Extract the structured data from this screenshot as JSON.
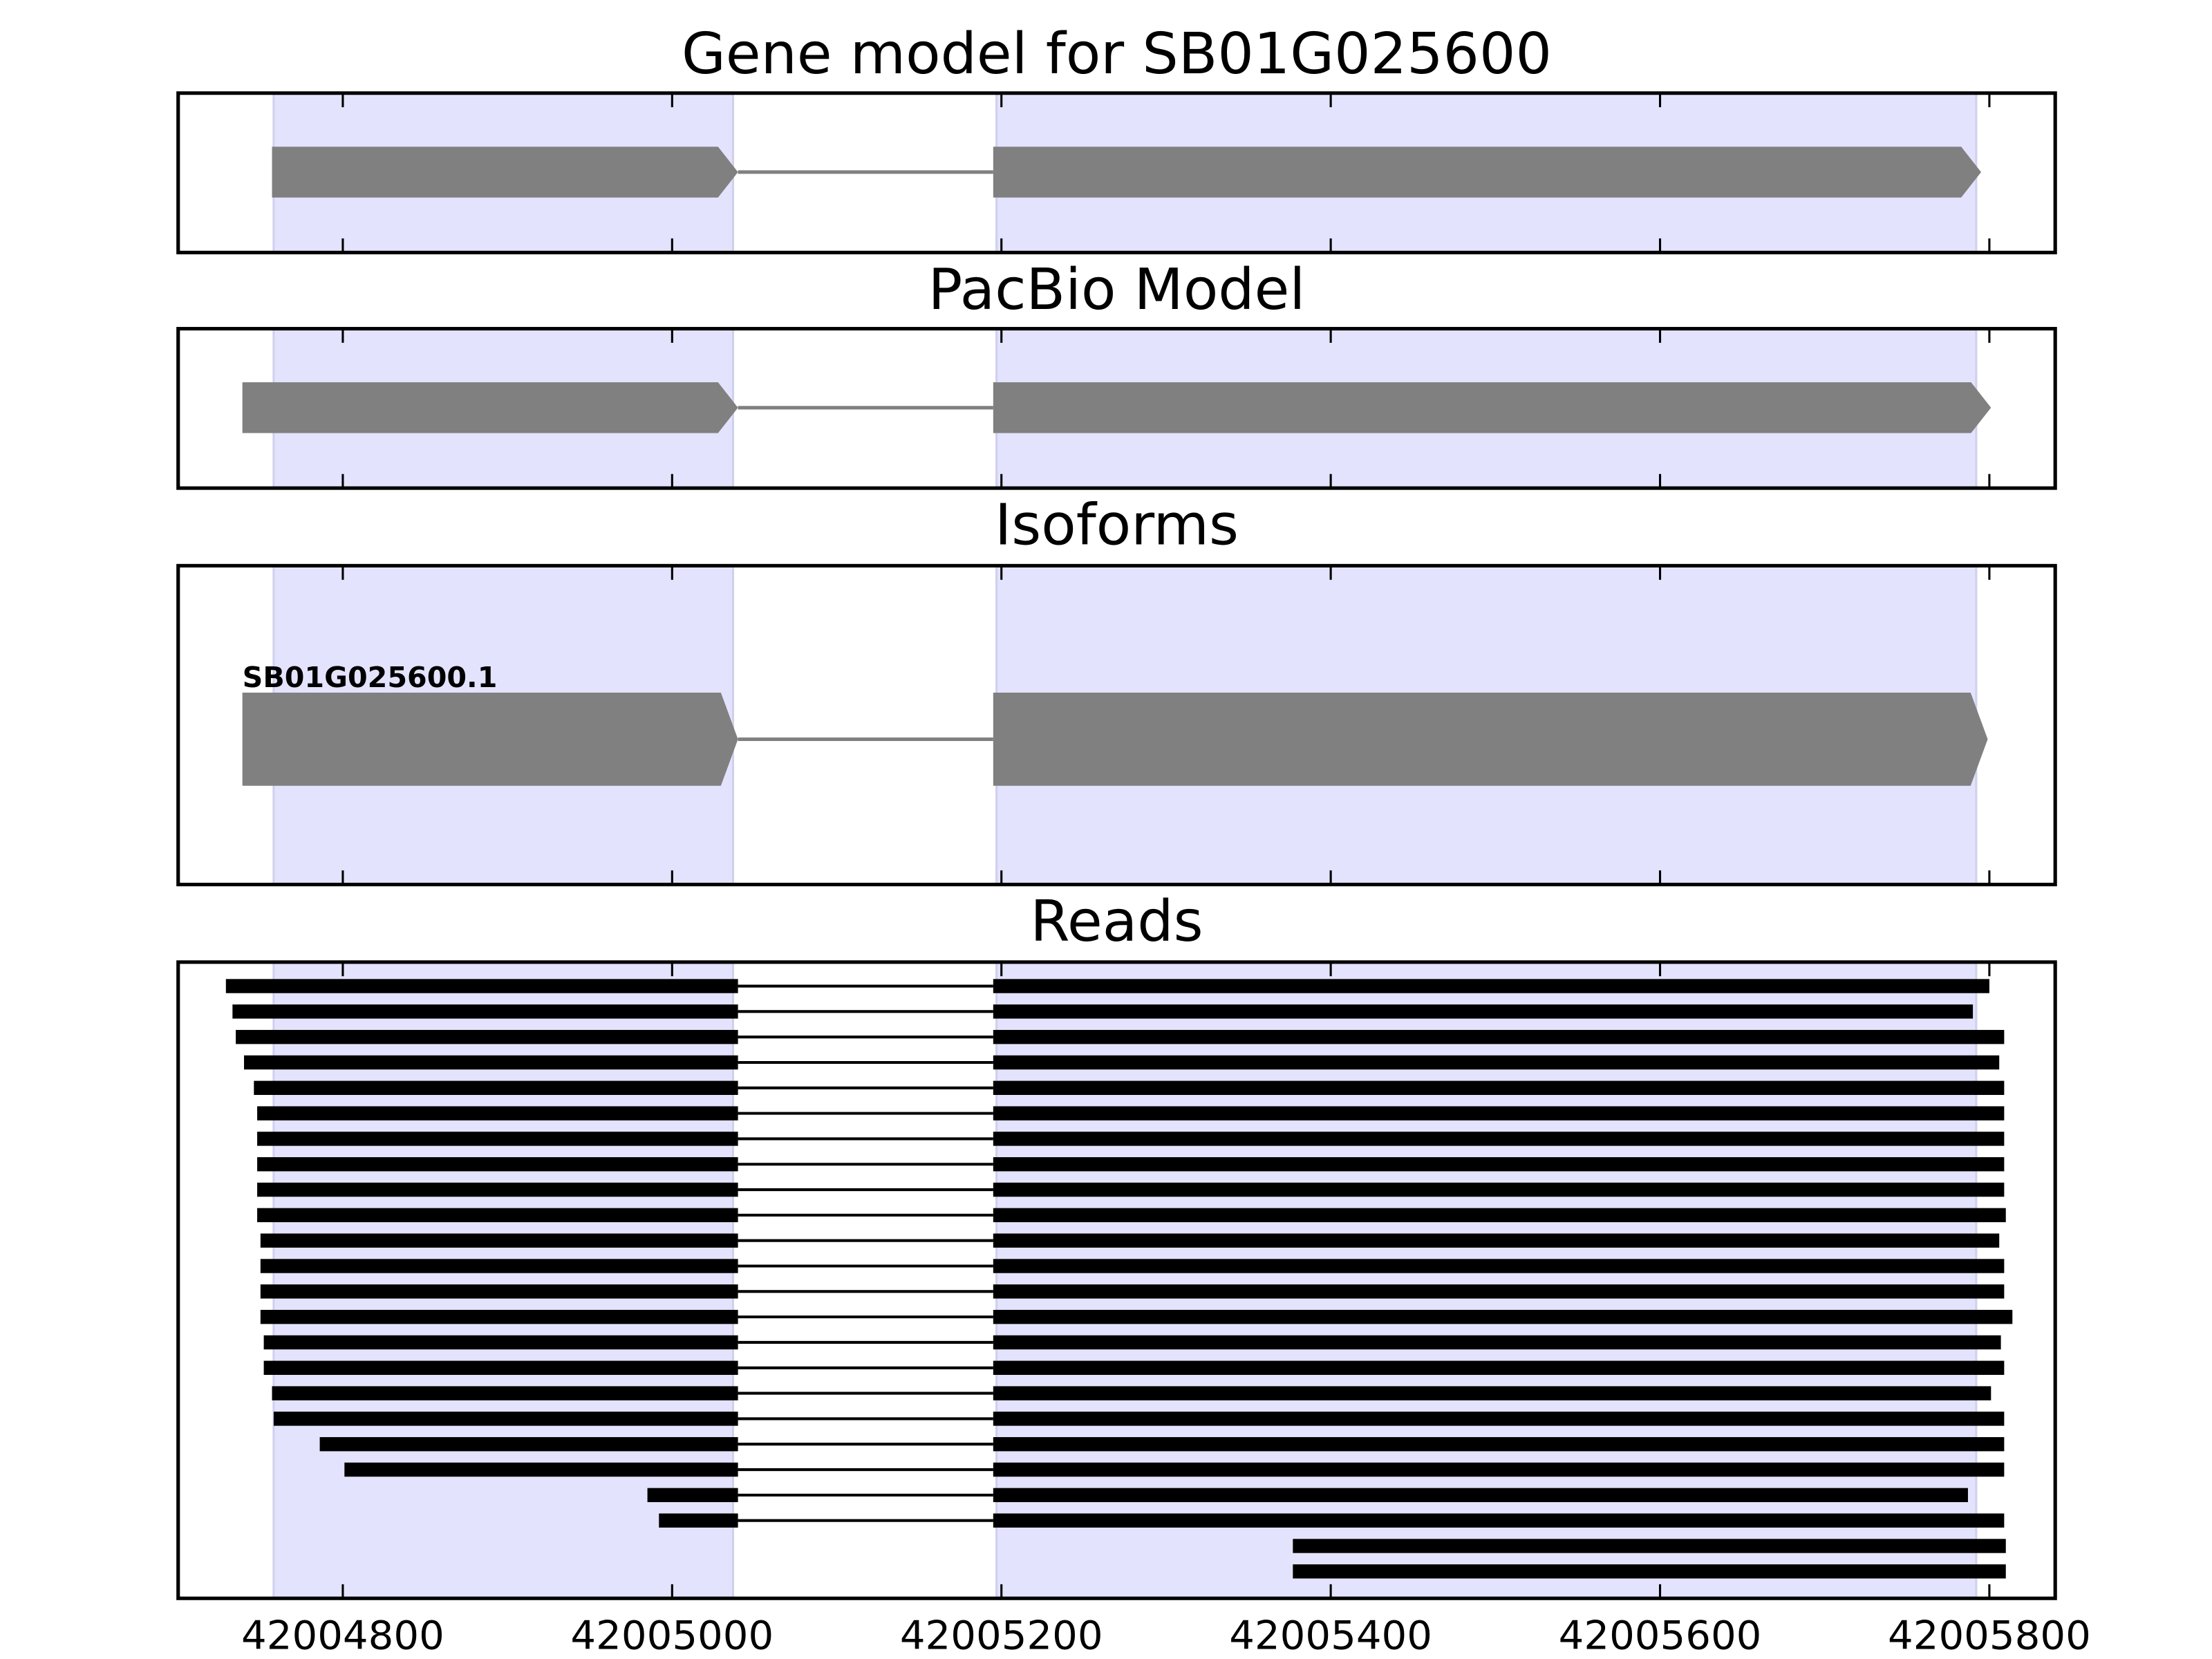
{
  "xlim": [
    42004700,
    42005840
  ],
  "xticks": [
    42004800,
    42005000,
    42005200,
    42005400,
    42005600,
    42005800
  ],
  "highlight": [
    [
      42004758,
      42005037
    ],
    [
      42005197,
      42005792
    ]
  ],
  "gene_model": {
    "title": "Gene model for SB01G025600",
    "exons": [
      [
        42004757,
        42005040
      ],
      [
        42005195,
        42005795
      ]
    ]
  },
  "pacbio": {
    "title": "PacBio Model",
    "exons": [
      [
        42004739,
        42005040
      ],
      [
        42005195,
        42005801
      ]
    ]
  },
  "isoforms": {
    "title": "Isoforms",
    "items": [
      {
        "name": "SB01G025600.1",
        "exons": [
          [
            42004739,
            42005040
          ],
          [
            42005195,
            42005799
          ]
        ]
      }
    ]
  },
  "reads": {
    "title": "Reads",
    "items": [
      [
        [
          42004729,
          42005040
        ],
        [
          42005195,
          42005800
        ]
      ],
      [
        [
          42004733,
          42005040
        ],
        [
          42005195,
          42005790
        ]
      ],
      [
        [
          42004735,
          42005040
        ],
        [
          42005195,
          42005809
        ]
      ],
      [
        [
          42004740,
          42005040
        ],
        [
          42005195,
          42005806
        ]
      ],
      [
        [
          42004746,
          42005040
        ],
        [
          42005195,
          42005809
        ]
      ],
      [
        [
          42004748,
          42005040
        ],
        [
          42005195,
          42005809
        ]
      ],
      [
        [
          42004748,
          42005040
        ],
        [
          42005195,
          42005809
        ]
      ],
      [
        [
          42004748,
          42005040
        ],
        [
          42005195,
          42005809
        ]
      ],
      [
        [
          42004748,
          42005040
        ],
        [
          42005195,
          42005809
        ]
      ],
      [
        [
          42004748,
          42005040
        ],
        [
          42005195,
          42005810
        ]
      ],
      [
        [
          42004750,
          42005040
        ],
        [
          42005195,
          42005806
        ]
      ],
      [
        [
          42004750,
          42005040
        ],
        [
          42005195,
          42005809
        ]
      ],
      [
        [
          42004750,
          42005040
        ],
        [
          42005195,
          42005809
        ]
      ],
      [
        [
          42004750,
          42005040
        ],
        [
          42005195,
          42005814
        ]
      ],
      [
        [
          42004752,
          42005040
        ],
        [
          42005195,
          42005807
        ]
      ],
      [
        [
          42004752,
          42005040
        ],
        [
          42005195,
          42005809
        ]
      ],
      [
        [
          42004757,
          42005040
        ],
        [
          42005195,
          42005801
        ]
      ],
      [
        [
          42004758,
          42005040
        ],
        [
          42005195,
          42005809
        ]
      ],
      [
        [
          42004786,
          42005040
        ],
        [
          42005195,
          42005809
        ]
      ],
      [
        [
          42004801,
          42005040
        ],
        [
          42005195,
          42005809
        ]
      ],
      [
        [
          42004985,
          42005040
        ],
        [
          42005195,
          42005787
        ]
      ],
      [
        [
          42004992,
          42005040
        ],
        [
          42005195,
          42005809
        ]
      ],
      [
        [
          42005377,
          42005810
        ]
      ],
      [
        [
          42005377,
          42005810
        ]
      ]
    ]
  }
}
